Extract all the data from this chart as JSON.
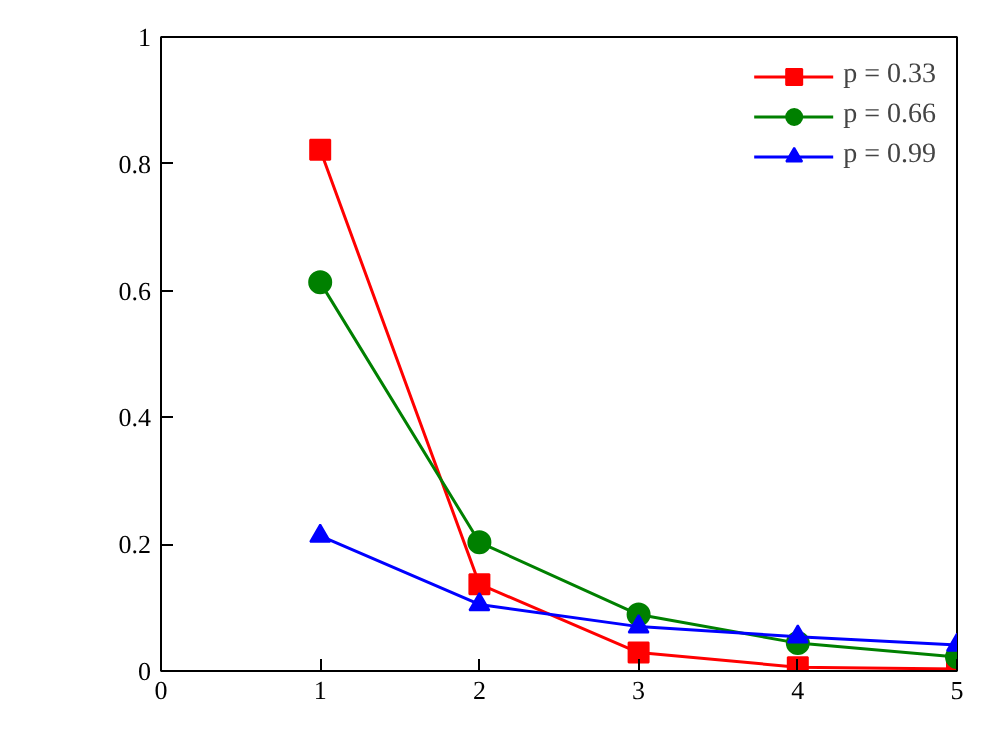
{
  "chart_data": {
    "type": "line",
    "x": [
      1,
      2,
      3,
      4,
      5
    ],
    "series": [
      {
        "name": "p = 0.33",
        "color": "#ff0000",
        "marker": "square",
        "values": [
          0.822,
          0.137,
          0.029,
          0.006,
          0.003
        ]
      },
      {
        "name": "p = 0.66",
        "color": "#008000",
        "marker": "circle",
        "values": [
          0.613,
          0.203,
          0.089,
          0.044,
          0.022
        ]
      },
      {
        "name": "p = 0.99",
        "color": "#0000ff",
        "marker": "triangle",
        "values": [
          0.213,
          0.105,
          0.07,
          0.054,
          0.041
        ]
      }
    ],
    "xlim": [
      0,
      5
    ],
    "xticks": [
      0,
      1,
      2,
      3,
      4,
      5
    ],
    "ylim": [
      0,
      1
    ],
    "yticks": [
      0,
      {
        "value": 0.2,
        "label": "0.2"
      },
      {
        "value": 0.4,
        "label": "0.4"
      },
      {
        "value": 0.6,
        "label": "0.6"
      },
      {
        "value": 0.8,
        "label": "0.8"
      },
      1
    ],
    "grid": false,
    "legend": "top right",
    "line_style": "solid"
  }
}
